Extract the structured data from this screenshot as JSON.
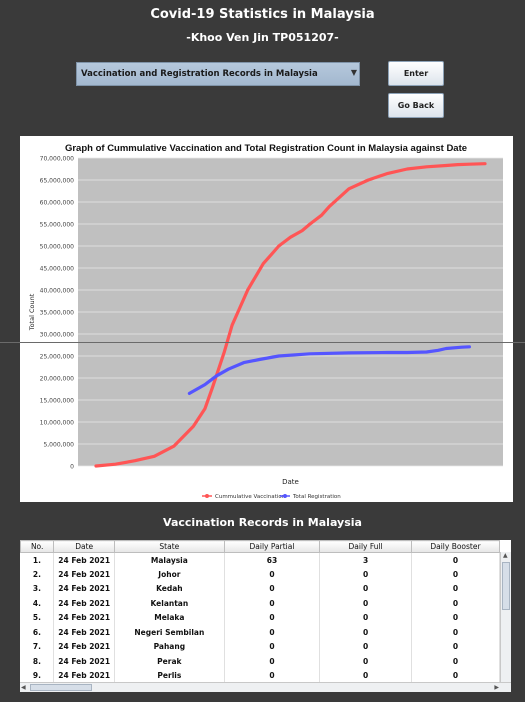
{
  "app": {
    "title": "Covid-19 Statistics in Malaysia",
    "subtitle": "-Khoo Ven Jin TP051207-"
  },
  "controls": {
    "dataset_select": "Vaccination and Registration Records in Malaysia",
    "enter_label": "Enter",
    "goback_label": "Go Back"
  },
  "colors": {
    "background": "#3a3a3a",
    "plot_background": "#c0c0c0",
    "vaccination_series": "#ff5555",
    "registration_series": "#5555ff"
  },
  "chart_data": {
    "type": "line",
    "title": "Graph of Cummulative Vaccination and Total Registration Count in Malaysia against Date",
    "xlabel": "Date",
    "ylabel": "Total Count",
    "ylim": [
      0,
      70000000
    ],
    "yticks": [
      "0",
      "5,000,000",
      "10,000,000",
      "15,000,000",
      "20,000,000",
      "25,000,000",
      "30,000,000",
      "35,000,000",
      "40,000,000",
      "45,000,000",
      "50,000,000",
      "55,000,000",
      "60,000,000",
      "65,000,000",
      "70,000,000"
    ],
    "grid": true,
    "legend_position": "bottom",
    "series": [
      {
        "name": "Cummulative Vaccination",
        "color": "#ff5555",
        "x": [
          0,
          0.05,
          0.1,
          0.15,
          0.2,
          0.25,
          0.28,
          0.3,
          0.33,
          0.35,
          0.37,
          0.39,
          0.41,
          0.43,
          0.45,
          0.47,
          0.5,
          0.53,
          0.55,
          0.58,
          0.6,
          0.65,
          0.7,
          0.75,
          0.8,
          0.85,
          0.9,
          0.93,
          0.96,
          1.0
        ],
        "values": [
          0,
          400000,
          1200000,
          2200000,
          4500000,
          9000000,
          13000000,
          18000000,
          26000000,
          32000000,
          36000000,
          40000000,
          43000000,
          46000000,
          48000000,
          50000000,
          52000000,
          53500000,
          55000000,
          57000000,
          59000000,
          63000000,
          65000000,
          66500000,
          67500000,
          68000000,
          68300000,
          68500000,
          68600000,
          68700000
        ]
      },
      {
        "name": "Total Registration",
        "color": "#5555ff",
        "x": [
          0.24,
          0.28,
          0.31,
          0.34,
          0.38,
          0.42,
          0.47,
          0.55,
          0.65,
          0.75,
          0.8,
          0.85,
          0.88,
          0.9,
          0.94,
          0.96
        ],
        "values": [
          16500000,
          18500000,
          20500000,
          22000000,
          23500000,
          24200000,
          25000000,
          25500000,
          25700000,
          25800000,
          25800000,
          25900000,
          26300000,
          26700000,
          27000000,
          27100000
        ]
      }
    ]
  },
  "table": {
    "title": "Vaccination Records in Malaysia",
    "columns": [
      "No.",
      "Date",
      "State",
      "Daily Partial",
      "Daily Full",
      "Daily Booster"
    ],
    "rows": [
      [
        "1.",
        "24 Feb 2021",
        "Malaysia",
        "63",
        "3",
        "0"
      ],
      [
        "2.",
        "24 Feb 2021",
        "Johor",
        "0",
        "0",
        "0"
      ],
      [
        "3.",
        "24 Feb 2021",
        "Kedah",
        "0",
        "0",
        "0"
      ],
      [
        "4.",
        "24 Feb 2021",
        "Kelantan",
        "0",
        "0",
        "0"
      ],
      [
        "5.",
        "24 Feb 2021",
        "Melaka",
        "0",
        "0",
        "0"
      ],
      [
        "6.",
        "24 Feb 2021",
        "Negeri Sembilan",
        "0",
        "0",
        "0"
      ],
      [
        "7.",
        "24 Feb 2021",
        "Pahang",
        "0",
        "0",
        "0"
      ],
      [
        "8.",
        "24 Feb 2021",
        "Perak",
        "0",
        "0",
        "0"
      ],
      [
        "9.",
        "24 Feb 2021",
        "Perlis",
        "0",
        "0",
        "0"
      ]
    ]
  }
}
